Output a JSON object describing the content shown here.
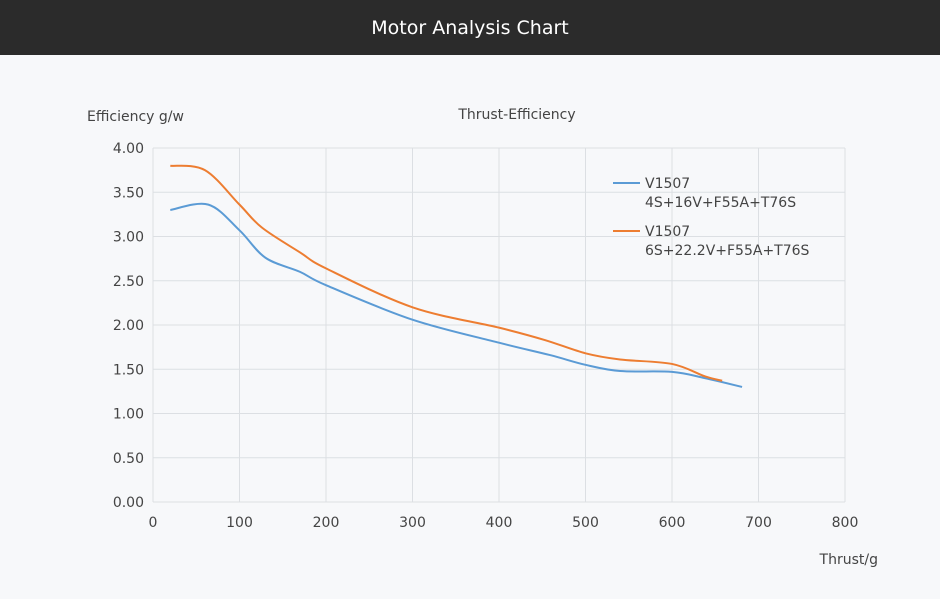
{
  "header": {
    "title": "Motor Analysis Chart"
  },
  "chart_data": {
    "type": "line",
    "title": "Thrust-Efficiency",
    "xlabel": "Thrust/g",
    "ylabel": "Efficiency g/w",
    "xlim": [
      0,
      800
    ],
    "ylim": [
      0,
      4
    ],
    "xticks": [
      "0",
      "100",
      "200",
      "300",
      "400",
      "500",
      "600",
      "700",
      "800"
    ],
    "yticks": [
      "0.00",
      "0.50",
      "1.00",
      "1.50",
      "2.00",
      "2.50",
      "3.00",
      "3.50",
      "4.00"
    ],
    "grid": true,
    "legend": "top-right",
    "series": [
      {
        "name_line1": "V1507",
        "name_line2": "4S+16V+F55A+T76S",
        "color": "#5b9bd5",
        "x": [
          20,
          64,
          100,
          130,
          170,
          200,
          300,
          400,
          459,
          500,
          540,
          600,
          638,
          681
        ],
        "y": [
          3.3,
          3.36,
          3.07,
          2.76,
          2.6,
          2.45,
          2.06,
          1.8,
          1.66,
          1.55,
          1.48,
          1.47,
          1.4,
          1.3
        ]
      },
      {
        "name_line1": "V1507",
        "name_line2": "6S+22.2V+F55A+T76S",
        "color": "#ed7d31",
        "x": [
          20,
          60,
          100,
          126,
          170,
          200,
          300,
          400,
          453,
          500,
          540,
          600,
          638,
          658
        ],
        "y": [
          3.8,
          3.75,
          3.36,
          3.1,
          2.82,
          2.64,
          2.2,
          1.97,
          1.83,
          1.68,
          1.61,
          1.56,
          1.42,
          1.37
        ]
      }
    ]
  }
}
